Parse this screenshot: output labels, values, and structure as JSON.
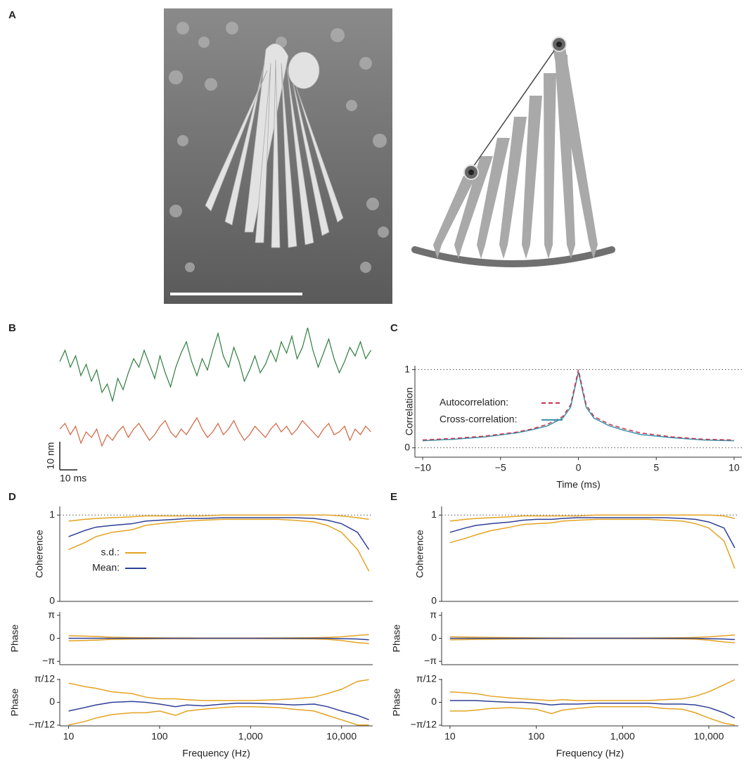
{
  "panel_labels": [
    "A",
    "B",
    "C",
    "D",
    "E"
  ],
  "chart_data": [
    {
      "type": "line",
      "x": [
        0,
        3,
        6,
        9,
        12,
        15,
        18,
        21,
        24,
        27,
        30,
        33,
        36,
        39,
        42,
        45,
        48,
        51,
        54,
        57,
        60,
        63,
        66,
        69,
        72,
        75,
        78,
        81,
        84,
        87,
        90,
        93,
        96,
        99,
        102,
        105,
        108,
        111,
        114,
        117,
        120,
        123,
        126,
        129,
        132,
        135,
        138,
        141,
        144,
        147,
        150,
        153,
        156,
        159,
        162,
        165,
        168,
        171,
        174,
        177
      ],
      "series": [
        {
          "color": "#2f7d3f",
          "values": [
            26,
            30,
            24,
            28,
            21,
            25,
            19,
            23,
            15,
            18,
            12,
            20,
            16,
            22,
            27,
            24,
            30,
            25,
            20,
            28,
            22,
            17,
            24,
            29,
            33,
            26,
            21,
            27,
            23,
            30,
            36,
            28,
            24,
            31,
            26,
            19,
            23,
            28,
            22,
            25,
            30,
            26,
            33,
            29,
            35,
            27,
            31,
            38,
            30,
            24,
            29,
            34,
            27,
            22,
            26,
            31,
            28,
            33,
            27,
            30
          ]
        },
        {
          "color": "#d0643f",
          "values": [
            2,
            4,
            0,
            3,
            -3,
            1,
            -1,
            2,
            -4,
            0,
            -2,
            1,
            3,
            -1,
            2,
            4,
            1,
            -2,
            0,
            3,
            5,
            1,
            -1,
            2,
            0,
            3,
            6,
            2,
            -1,
            1,
            4,
            0,
            2,
            5,
            1,
            -2,
            0,
            3,
            1,
            -1,
            2,
            4,
            1,
            3,
            0,
            2,
            5,
            3,
            1,
            -1,
            2,
            4,
            0,
            1,
            3,
            -2,
            2,
            0,
            3,
            1
          ]
        }
      ],
      "scale_bar": {
        "x": {
          "value": 10,
          "label": "10 ms"
        },
        "y": {
          "value": 10,
          "label": "10 nm"
        }
      }
    },
    {
      "type": "line",
      "x": [
        -10,
        -8,
        -6,
        -4,
        -3,
        -2,
        -1,
        -0.5,
        0,
        0.5,
        1,
        2,
        3,
        4,
        6,
        8,
        10
      ],
      "xlim": [
        -10.5,
        10.5
      ],
      "xticks": [
        {
          "value": -10,
          "label": "−10"
        },
        {
          "value": -5,
          "label": "−5"
        },
        0,
        5,
        10
      ],
      "ylim": [
        -0.12,
        1.05
      ],
      "yticks": [
        0,
        1
      ],
      "grid": "dotted",
      "xlabel": "Time (ms)",
      "ylabel": "Correlation",
      "series": [
        {
          "name": "Autocorrelation:",
          "color": "#c8324e",
          "dashed": true,
          "values": [
            0.1,
            0.12,
            0.15,
            0.2,
            0.24,
            0.3,
            0.4,
            0.55,
            1,
            0.55,
            0.4,
            0.3,
            0.24,
            0.19,
            0.14,
            0.11,
            0.1
          ]
        },
        {
          "name": "Cross-correlation:",
          "color": "#3a93aa",
          "values": [
            0.09,
            0.11,
            0.14,
            0.19,
            0.23,
            0.28,
            0.38,
            0.52,
            0.97,
            0.52,
            0.38,
            0.28,
            0.22,
            0.17,
            0.13,
            0.1,
            0.09
          ]
        }
      ]
    },
    {
      "type": "line",
      "log_x": true,
      "x": [
        10,
        15,
        20,
        30,
        50,
        70,
        100,
        150,
        200,
        300,
        500,
        700,
        1000,
        2000,
        3000,
        5000,
        7000,
        10000,
        15000,
        20000
      ],
      "xlim": [
        8,
        22000
      ],
      "xticks": [
        10,
        100,
        {
          "value": 1000,
          "label": "1,000"
        },
        {
          "value": 10000,
          "label": "10,000"
        }
      ],
      "xlabel": "Frequency (Hz)",
      "subplots": [
        {
          "ylabel": "Coherence",
          "ylim": [
            0,
            1.1
          ],
          "yticks": [
            0,
            1
          ],
          "hline": 1,
          "series": [
            {
              "name": "s.d.:",
              "color": "#e3a322",
              "values": [
                0.93,
                0.95,
                0.96,
                0.97,
                0.98,
                0.99,
                0.99,
                0.99,
                0.99,
                0.99,
                1,
                1,
                1,
                1,
                1,
                1,
                1,
                0.99,
                0.97,
                0.95
              ],
              "lower": [
                0.6,
                0.68,
                0.75,
                0.8,
                0.83,
                0.88,
                0.9,
                0.92,
                0.93,
                0.94,
                0.95,
                0.95,
                0.95,
                0.95,
                0.94,
                0.92,
                0.88,
                0.8,
                0.6,
                0.35
              ]
            },
            {
              "name": "Mean:",
              "color": "#2e3f96",
              "values": [
                0.75,
                0.82,
                0.86,
                0.88,
                0.9,
                0.93,
                0.94,
                0.95,
                0.96,
                0.96,
                0.97,
                0.97,
                0.97,
                0.97,
                0.97,
                0.96,
                0.94,
                0.9,
                0.8,
                0.6
              ]
            }
          ]
        },
        {
          "ylabel": "Phase",
          "ylim": [
            -3.6,
            3.6
          ],
          "yticks": [
            {
              "value": 3.14159,
              "label": "π"
            },
            0,
            {
              "value": -3.14159,
              "label": "−π"
            }
          ],
          "series": [
            {
              "color": "#e3a322",
              "values": [
                0.35,
                0.3,
                0.25,
                0.15,
                0.1,
                0.08,
                0.06,
                0.05,
                0.05,
                0.04,
                0.04,
                0.04,
                0.04,
                0.05,
                0.06,
                0.08,
                0.12,
                0.2,
                0.4,
                0.5
              ],
              "lower": [
                -0.35,
                -0.3,
                -0.25,
                -0.15,
                -0.1,
                -0.08,
                -0.06,
                -0.05,
                -0.05,
                -0.04,
                -0.04,
                -0.04,
                -0.04,
                -0.05,
                -0.06,
                -0.08,
                -0.15,
                -0.3,
                -0.6,
                -0.7
              ]
            },
            {
              "color": "#2e3f96",
              "values": [
                0,
                0,
                0,
                0,
                0,
                0,
                0,
                0,
                0,
                0,
                0,
                0,
                0,
                0,
                0,
                0,
                0,
                -0.05,
                -0.1,
                -0.2
              ]
            }
          ]
        },
        {
          "ylabel": "Phase",
          "ylim": [
            -0.27,
            0.27
          ],
          "yticks": [
            {
              "value": 0.2618,
              "label": "π/12"
            },
            0,
            {
              "value": -0.2618,
              "label": "−π/12"
            }
          ],
          "series": [
            {
              "color": "#e3a322",
              "values": [
                0.22,
                0.18,
                0.16,
                0.12,
                0.1,
                0.06,
                0.04,
                0.04,
                0.03,
                0.02,
                0.02,
                0.02,
                0.02,
                0.03,
                0.04,
                0.06,
                0.1,
                0.15,
                0.24,
                0.26
              ],
              "lower": [
                -0.26,
                -0.22,
                -0.18,
                -0.14,
                -0.12,
                -0.12,
                -0.1,
                -0.15,
                -0.1,
                -0.08,
                -0.06,
                -0.05,
                -0.05,
                -0.06,
                -0.08,
                -0.1,
                -0.15,
                -0.2,
                -0.26,
                -0.26
              ]
            },
            {
              "color": "#2e3f96",
              "values": [
                -0.1,
                -0.06,
                -0.03,
                0,
                0.01,
                0,
                -0.02,
                -0.05,
                -0.03,
                -0.04,
                -0.02,
                -0.01,
                -0.01,
                -0.02,
                -0.03,
                -0.02,
                -0.05,
                -0.1,
                -0.15,
                -0.2
              ]
            }
          ]
        }
      ]
    },
    {
      "type": "line",
      "log_x": true,
      "x": [
        10,
        15,
        20,
        30,
        50,
        70,
        100,
        150,
        200,
        300,
        500,
        700,
        1000,
        2000,
        3000,
        5000,
        7000,
        10000,
        15000,
        20000
      ],
      "xlim": [
        8,
        22000
      ],
      "xticks": [
        10,
        100,
        {
          "value": 1000,
          "label": "1,000"
        },
        {
          "value": 10000,
          "label": "10,000"
        }
      ],
      "xlabel": "Frequency (Hz)",
      "subplots": [
        {
          "ylabel": "Coherence",
          "ylim": [
            0,
            1.1
          ],
          "yticks": [
            0,
            1
          ],
          "hline": 1,
          "series": [
            {
              "color": "#e3a322",
              "values": [
                0.93,
                0.95,
                0.96,
                0.97,
                0.98,
                0.99,
                0.99,
                0.99,
                0.99,
                0.99,
                1,
                1,
                1,
                1,
                1,
                1,
                1,
                1,
                0.99,
                0.96
              ],
              "lower": [
                0.68,
                0.73,
                0.77,
                0.82,
                0.86,
                0.89,
                0.9,
                0.91,
                0.93,
                0.94,
                0.95,
                0.95,
                0.95,
                0.95,
                0.94,
                0.93,
                0.9,
                0.85,
                0.7,
                0.38
              ]
            },
            {
              "color": "#2e3f96",
              "values": [
                0.8,
                0.85,
                0.88,
                0.9,
                0.92,
                0.94,
                0.95,
                0.95,
                0.96,
                0.97,
                0.97,
                0.97,
                0.97,
                0.97,
                0.97,
                0.96,
                0.95,
                0.92,
                0.85,
                0.62
              ]
            }
          ]
        },
        {
          "ylabel": "Phase",
          "ylim": [
            -3.6,
            3.6
          ],
          "yticks": [
            {
              "value": 3.14159,
              "label": "π"
            },
            0,
            {
              "value": -3.14159,
              "label": "−π"
            }
          ],
          "series": [
            {
              "color": "#e3a322",
              "values": [
                0.2,
                0.18,
                0.15,
                0.12,
                0.1,
                0.08,
                0.06,
                0.05,
                0.05,
                0.04,
                0.04,
                0.04,
                0.04,
                0.05,
                0.06,
                0.08,
                0.12,
                0.2,
                0.35,
                0.45
              ],
              "lower": [
                -0.2,
                -0.18,
                -0.15,
                -0.12,
                -0.1,
                -0.08,
                -0.06,
                -0.05,
                -0.05,
                -0.04,
                -0.04,
                -0.04,
                -0.04,
                -0.05,
                -0.06,
                -0.08,
                -0.12,
                -0.25,
                -0.5,
                -0.6
              ]
            },
            {
              "color": "#2e3f96",
              "values": [
                0,
                0,
                0,
                0,
                0,
                0,
                0,
                0,
                0,
                0,
                0,
                0,
                0,
                0,
                0,
                0,
                0,
                -0.05,
                -0.1,
                -0.18
              ]
            }
          ]
        },
        {
          "ylabel": "Phase",
          "ylim": [
            -0.27,
            0.27
          ],
          "yticks": [
            {
              "value": 0.2618,
              "label": "π/12"
            },
            0,
            {
              "value": -0.2618,
              "label": "−π/12"
            }
          ],
          "series": [
            {
              "color": "#e3a322",
              "values": [
                0.12,
                0.11,
                0.1,
                0.07,
                0.05,
                0.04,
                0.03,
                0.02,
                0.03,
                0.02,
                0.02,
                0.02,
                0.02,
                0.02,
                0.03,
                0.04,
                0.07,
                0.12,
                0.2,
                0.26
              ],
              "lower": [
                -0.1,
                -0.1,
                -0.09,
                -0.07,
                -0.06,
                -0.07,
                -0.08,
                -0.13,
                -0.09,
                -0.07,
                -0.05,
                -0.05,
                -0.05,
                -0.05,
                -0.07,
                -0.08,
                -0.12,
                -0.18,
                -0.24,
                -0.26
              ]
            },
            {
              "color": "#2e3f96",
              "values": [
                0.02,
                0.02,
                0.02,
                0.01,
                0,
                0,
                -0.01,
                -0.03,
                -0.02,
                -0.02,
                -0.01,
                -0.01,
                -0.01,
                -0.01,
                -0.02,
                -0.02,
                -0.03,
                -0.06,
                -0.12,
                -0.18
              ]
            }
          ]
        }
      ]
    }
  ]
}
